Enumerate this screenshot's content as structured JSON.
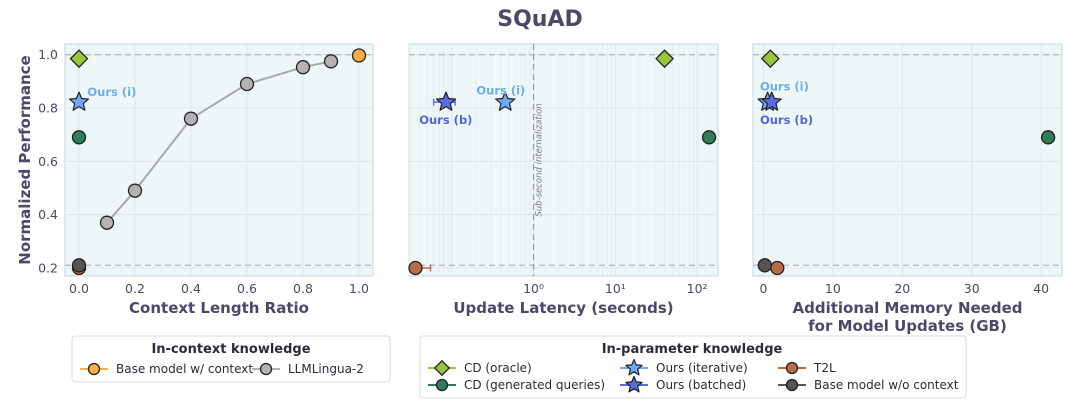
{
  "figure_title": "SQuAD",
  "colors": {
    "panel_bg": "#eef7f8",
    "grid": "#dfe6ea",
    "axis_text": "#4a4a68",
    "base_ctx": "#f5b041",
    "llmlingua": "#b3b3b3",
    "llmlingua_line": "#a8a8a8",
    "cd_oracle": "#9bc53d",
    "cd_gen": "#2e7d5b",
    "ours_iter": "#6fa8f5",
    "ours_batched": "#5b6be0",
    "t2l": "#b86c45",
    "base_noctx": "#555555",
    "ref_line": "#b5bcc4",
    "ann_iter": "#6aaee8",
    "ann_batched": "#5563d6"
  },
  "chart_data": [
    {
      "type": "scatter",
      "xlabel": "Context Length Ratio",
      "ylabel": "Normalized Performance",
      "xscale": "linear",
      "xlim": [
        -0.05,
        1.05
      ],
      "ylim": [
        0.17,
        1.04
      ],
      "xticks": [
        0.0,
        0.2,
        0.4,
        0.6,
        0.8,
        1.0
      ],
      "xtick_labels": [
        "0.0",
        "0.2",
        "0.4",
        "0.6",
        "0.8",
        "1.0"
      ],
      "yticks": [
        0.2,
        0.4,
        0.6,
        0.8,
        1.0
      ],
      "ytick_labels": [
        "0.2",
        "0.4",
        "0.6",
        "0.8",
        "1.0"
      ],
      "hlines": [
        1.0,
        0.21
      ],
      "line_series": {
        "name": "LLMLingua-2",
        "x": [
          0.1,
          0.2,
          0.4,
          0.6,
          0.8,
          0.9
        ],
        "y": [
          0.37,
          0.49,
          0.76,
          0.89,
          0.953,
          0.975
        ]
      },
      "points": [
        {
          "series": "Base model w/ context",
          "marker": "circle",
          "x": 1.0,
          "y": 0.997
        },
        {
          "series": "CD (oracle)",
          "marker": "diamond",
          "x": 0.0,
          "y": 0.985
        },
        {
          "series": "CD (generated queries)",
          "marker": "circle",
          "x": 0.0,
          "y": 0.69
        },
        {
          "series": "Ours (iterative)",
          "marker": "star",
          "x": 0.0,
          "y": 0.822
        },
        {
          "series": "T2L",
          "marker": "circle",
          "x": 0.0,
          "y": 0.2
        },
        {
          "series": "Base model w/o context",
          "marker": "circle",
          "x": 0.0,
          "y": 0.21
        }
      ],
      "annotations": [
        {
          "text": "Ours (i)",
          "series": "Ours (iterative)",
          "x": 0.03,
          "y": 0.86
        }
      ]
    },
    {
      "type": "scatter",
      "xlabel": "Update Latency (seconds)",
      "ylabel": "",
      "xscale": "log",
      "xlim": [
        0.03,
        180
      ],
      "ylim": [
        0.17,
        1.04
      ],
      "xticks": [
        1,
        10,
        100
      ],
      "xtick_labels": [
        "10⁰",
        "10¹",
        "10²"
      ],
      "yticks": [
        0.2,
        0.4,
        0.6,
        0.8,
        1.0
      ],
      "ytick_labels": [],
      "hlines": [
        1.0,
        0.21
      ],
      "vline": {
        "x": 1,
        "label": "Sub-second internalization"
      },
      "points": [
        {
          "series": "CD (oracle)",
          "marker": "diamond",
          "x": 40,
          "y": 0.985
        },
        {
          "series": "CD (generated queries)",
          "marker": "circle",
          "x": 140,
          "y": 0.69
        },
        {
          "series": "Ours (iterative)",
          "marker": "star",
          "x": 0.45,
          "y": 0.822
        },
        {
          "series": "Ours (batched)",
          "marker": "star",
          "x": 0.085,
          "y": 0.822,
          "xerr": [
            0.06,
            0.11
          ]
        },
        {
          "series": "T2L",
          "marker": "circle",
          "x": 0.036,
          "y": 0.2,
          "xerr": [
            0.034,
            0.055
          ]
        }
      ],
      "annotations": [
        {
          "text": "Ours (i)",
          "series": "Ours (iterative)",
          "x": 0.2,
          "y": 0.865
        },
        {
          "text": "Ours (b)",
          "series": "Ours (batched)",
          "x": 0.04,
          "y": 0.755
        }
      ]
    },
    {
      "type": "scatter",
      "xlabel": "Additional Memory Needed\nfor Model Updates (GB)",
      "ylabel": "",
      "xscale": "linear",
      "xlim": [
        -1.5,
        43
      ],
      "ylim": [
        0.17,
        1.04
      ],
      "xticks": [
        0,
        10,
        20,
        30,
        40
      ],
      "xtick_labels": [
        "0",
        "10",
        "20",
        "30",
        "40"
      ],
      "yticks": [
        0.2,
        0.4,
        0.6,
        0.8,
        1.0
      ],
      "ytick_labels": [],
      "hlines": [
        1.0,
        0.21
      ],
      "points": [
        {
          "series": "CD (oracle)",
          "marker": "diamond",
          "x": 1.0,
          "y": 0.985
        },
        {
          "series": "CD (generated queries)",
          "marker": "circle",
          "x": 41,
          "y": 0.69
        },
        {
          "series": "Ours (iterative)",
          "marker": "star",
          "x": 0.6,
          "y": 0.822
        },
        {
          "series": "Ours (batched)",
          "marker": "star",
          "x": 1.2,
          "y": 0.822
        },
        {
          "series": "T2L",
          "marker": "circle",
          "x": 2.0,
          "y": 0.2
        },
        {
          "series": "Base model w/o context",
          "marker": "circle",
          "x": 0.2,
          "y": 0.21
        }
      ],
      "annotations": [
        {
          "text": "Ours (i)",
          "series": "Ours (iterative)",
          "x": -0.5,
          "y": 0.88
        },
        {
          "text": "Ours (b)",
          "series": "Ours (batched)",
          "x": -0.5,
          "y": 0.755
        }
      ]
    }
  ],
  "legends": {
    "in_context": {
      "title": "In-context knowledge",
      "items": [
        {
          "label": "Base model w/ context",
          "series": "Base model w/ context",
          "marker": "circle"
        },
        {
          "label": "LLMLingua-2",
          "series": "LLMLingua-2",
          "marker": "circle"
        }
      ]
    },
    "in_parameter": {
      "title": "In-parameter knowledge",
      "items": [
        {
          "label": "CD (oracle)",
          "series": "CD (oracle)",
          "marker": "diamond"
        },
        {
          "label": "CD (generated queries)",
          "series": "CD (generated queries)",
          "marker": "circle"
        },
        {
          "label": "Ours (iterative)",
          "series": "Ours (iterative)",
          "marker": "star"
        },
        {
          "label": "Ours (batched)",
          "series": "Ours (batched)",
          "marker": "star"
        },
        {
          "label": "T2L",
          "series": "T2L",
          "marker": "circle"
        },
        {
          "label": "Base model w/o context",
          "series": "Base model w/o context",
          "marker": "circle"
        }
      ]
    }
  }
}
